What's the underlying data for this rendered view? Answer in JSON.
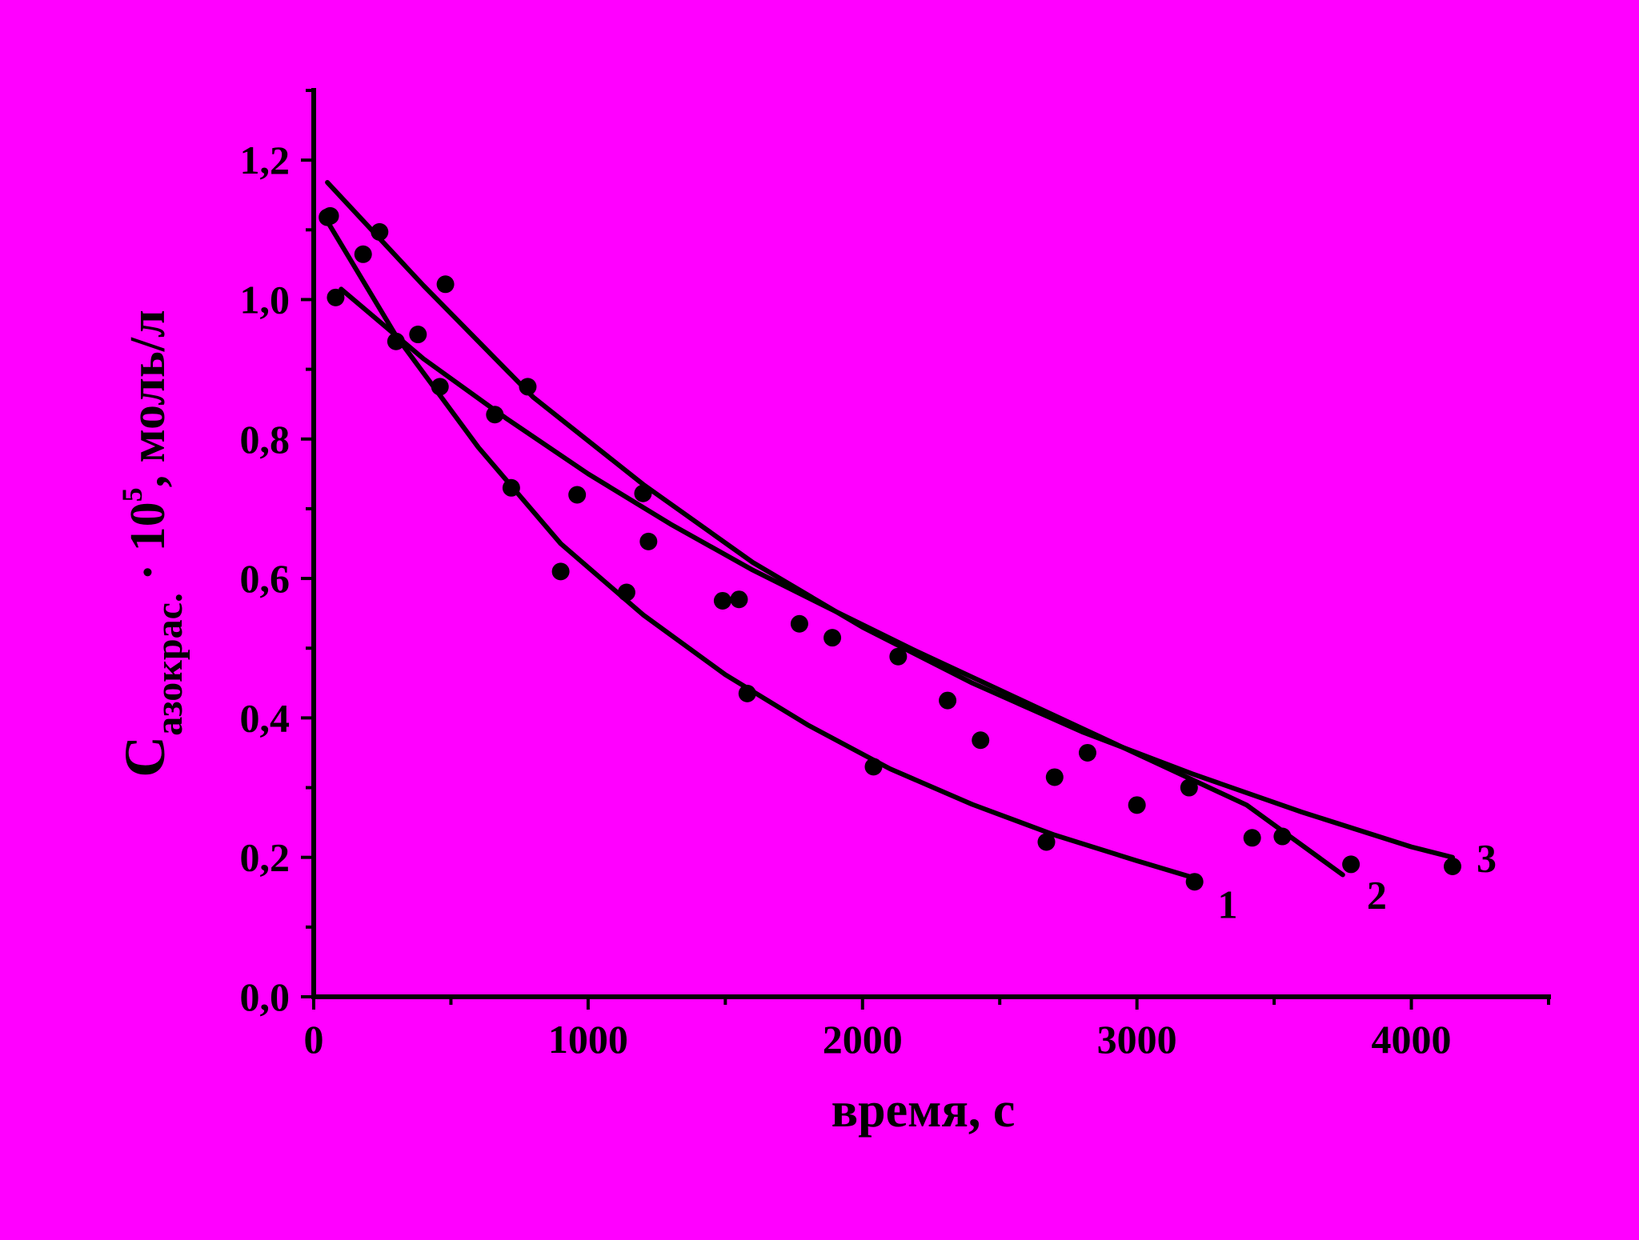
{
  "colors": {
    "background": "#ff00ff",
    "ink": "#000000"
  },
  "chart_data": {
    "type": "scatter",
    "xlabel": "время, с",
    "ylabel": {
      "main": "C",
      "subscript": "азокрас.",
      "mid": " · 10",
      "superscript": "5",
      "tail": ", моль/л"
    },
    "xlim": [
      0,
      4500
    ],
    "ylim": [
      0,
      1.3
    ],
    "x_ticks": [
      0,
      1000,
      2000,
      3000,
      4000
    ],
    "x_tick_labels": [
      "0",
      "1000",
      "2000",
      "3000",
      "4000"
    ],
    "y_ticks": [
      0,
      0.2,
      0.4,
      0.6,
      0.8,
      1.0,
      1.2
    ],
    "y_tick_labels": [
      "0,0",
      "0,2",
      "0,4",
      "0,6",
      "0,8",
      "1,0",
      "1,2"
    ],
    "grid": false,
    "legend": "none",
    "series": [
      {
        "name": "1",
        "points": [
          [
            60,
            1.12
          ],
          [
            300,
            0.94
          ],
          [
            720,
            0.73
          ],
          [
            900,
            0.61
          ],
          [
            1140,
            0.58
          ],
          [
            1580,
            0.435
          ],
          [
            2040,
            0.33
          ],
          [
            2670,
            0.222
          ],
          [
            3210,
            0.165
          ]
        ],
        "fit": [
          [
            50,
            1.112
          ],
          [
            300,
            0.948
          ],
          [
            600,
            0.788
          ],
          [
            900,
            0.65
          ],
          [
            1200,
            0.548
          ],
          [
            1500,
            0.462
          ],
          [
            1800,
            0.39
          ],
          [
            2100,
            0.327
          ],
          [
            2400,
            0.276
          ],
          [
            2700,
            0.232
          ],
          [
            3000,
            0.195
          ],
          [
            3230,
            0.168
          ]
        ]
      },
      {
        "name": "2",
        "points": [
          [
            80,
            1.003
          ],
          [
            460,
            0.875
          ],
          [
            660,
            0.835
          ],
          [
            960,
            0.72
          ],
          [
            1220,
            0.653
          ],
          [
            1490,
            0.568
          ],
          [
            1550,
            0.57
          ],
          [
            1770,
            0.535
          ],
          [
            1890,
            0.515
          ],
          [
            2310,
            0.425
          ],
          [
            2430,
            0.368
          ],
          [
            2700,
            0.315
          ],
          [
            3000,
            0.275
          ],
          [
            3420,
            0.228
          ],
          [
            3780,
            0.19
          ]
        ],
        "fit": [
          [
            100,
            1.015
          ],
          [
            400,
            0.915
          ],
          [
            700,
            0.83
          ],
          [
            1000,
            0.75
          ],
          [
            1300,
            0.678
          ],
          [
            1600,
            0.612
          ],
          [
            1900,
            0.553
          ],
          [
            2200,
            0.495
          ],
          [
            2500,
            0.44
          ],
          [
            2800,
            0.385
          ],
          [
            3100,
            0.33
          ],
          [
            3400,
            0.275
          ],
          [
            3750,
            0.175
          ]
        ]
      },
      {
        "name": "3",
        "points": [
          [
            50,
            1.118
          ],
          [
            180,
            1.065
          ],
          [
            240,
            1.097
          ],
          [
            380,
            0.95
          ],
          [
            480,
            1.022
          ],
          [
            780,
            0.875
          ],
          [
            1200,
            0.722
          ],
          [
            2130,
            0.488
          ],
          [
            2820,
            0.35
          ],
          [
            3190,
            0.3
          ],
          [
            3530,
            0.23
          ],
          [
            4150,
            0.187
          ]
        ],
        "fit": [
          [
            50,
            1.168
          ],
          [
            400,
            1.02
          ],
          [
            800,
            0.86
          ],
          [
            1200,
            0.735
          ],
          [
            1600,
            0.623
          ],
          [
            2000,
            0.53
          ],
          [
            2400,
            0.45
          ],
          [
            2800,
            0.38
          ],
          [
            3200,
            0.32
          ],
          [
            3600,
            0.265
          ],
          [
            4000,
            0.215
          ],
          [
            4150,
            0.2
          ]
        ]
      }
    ]
  }
}
